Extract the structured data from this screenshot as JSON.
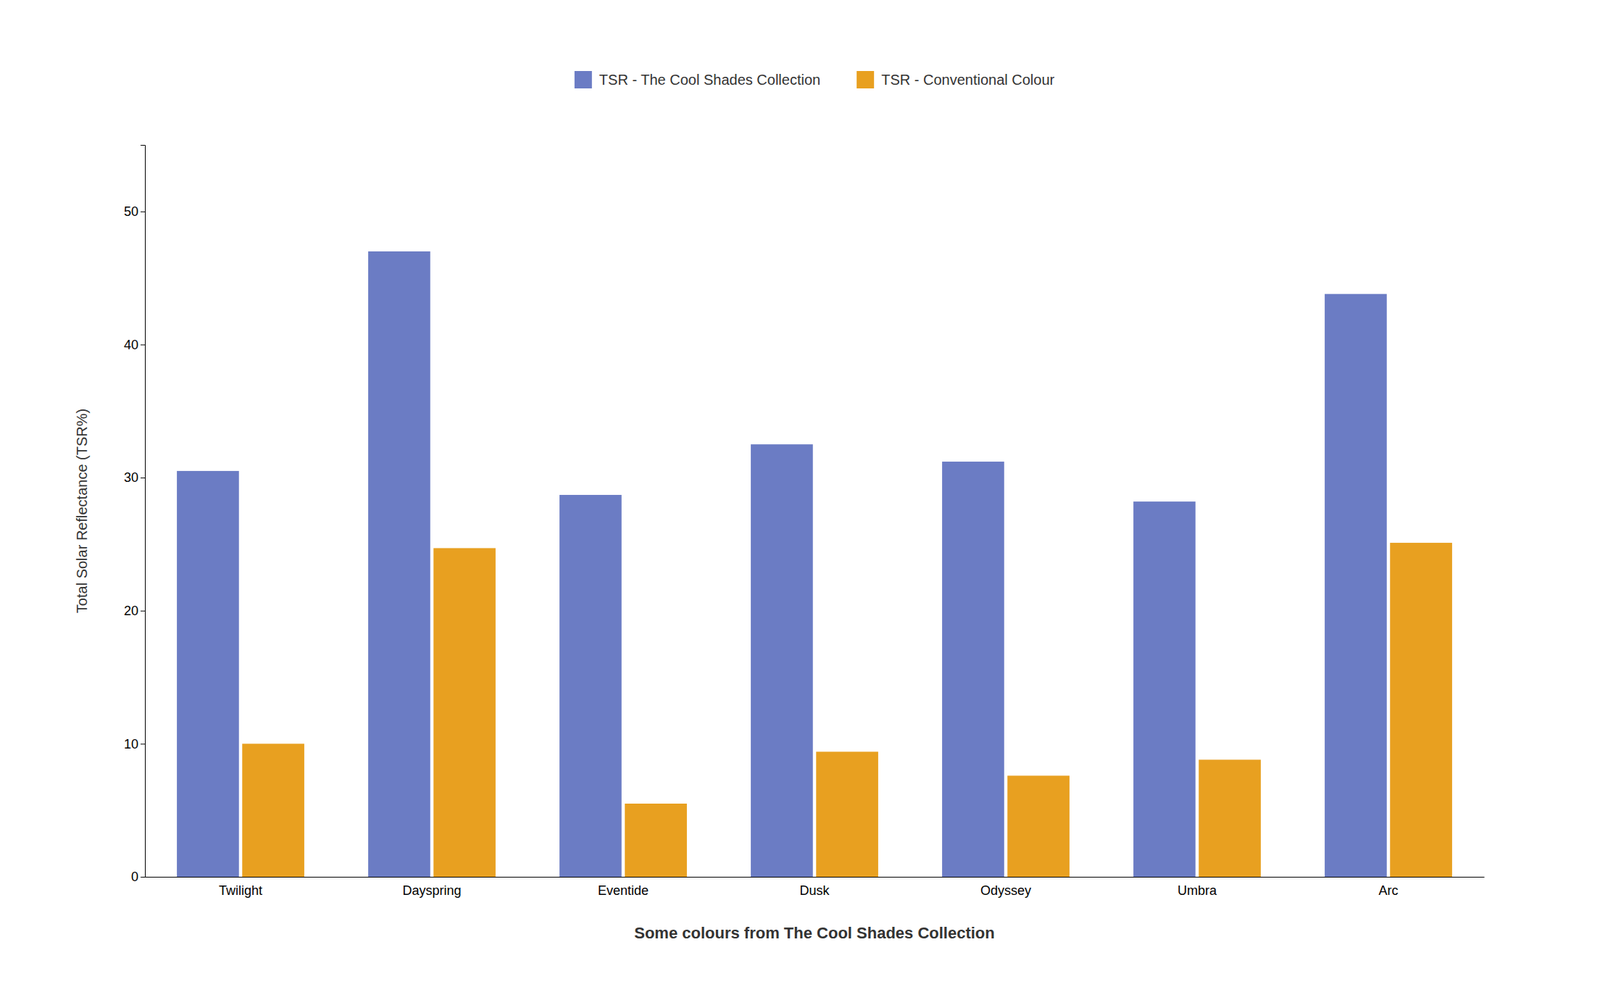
{
  "chart_data": {
    "type": "bar",
    "categories": [
      "Twilight",
      "Dayspring",
      "Eventide",
      "Dusk",
      "Odyssey",
      "Umbra",
      "Arc"
    ],
    "series": [
      {
        "name": "TSR - The Cool Shades Collection",
        "color": "#6B7CC4",
        "values": [
          30.5,
          47.0,
          28.7,
          32.5,
          31.2,
          28.2,
          43.8
        ]
      },
      {
        "name": "TSR - Conventional Colour",
        "color": "#E8A020",
        "values": [
          10.0,
          24.7,
          5.5,
          9.4,
          7.6,
          8.8,
          25.1
        ]
      }
    ],
    "xlabel": "Some colours from The Cool Shades Collection",
    "ylabel": "Total Solar Reflectance (TSR%)",
    "ylim": [
      0,
      55
    ],
    "yticks": [
      0,
      10,
      20,
      30,
      40,
      50
    ],
    "grid": false,
    "legend": "top"
  }
}
